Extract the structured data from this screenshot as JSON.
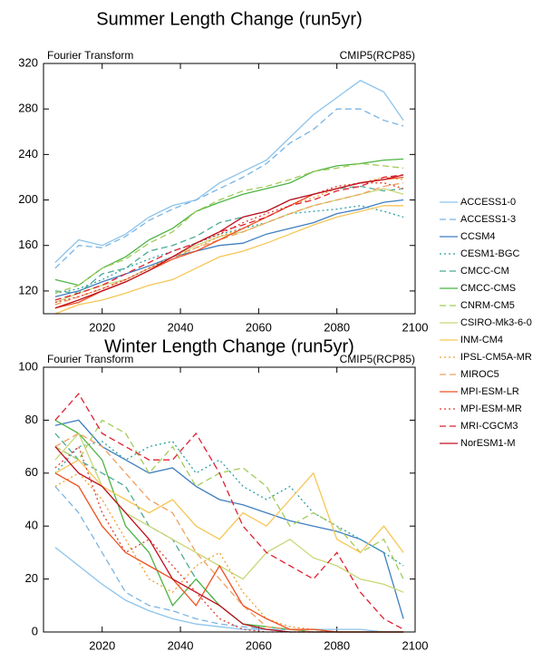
{
  "chart_data": [
    {
      "type": "line",
      "title": "Summer Length Change (run5yr)",
      "left_label": "Fourier Transform",
      "right_label": "CMIP5(RCP85)",
      "x": [
        2008,
        2014,
        2020,
        2026,
        2032,
        2038,
        2044,
        2050,
        2056,
        2062,
        2068,
        2074,
        2080,
        2086,
        2092,
        2097
      ],
      "xlim": [
        2005,
        2100
      ],
      "xticks": [
        2020,
        2040,
        2060,
        2080,
        2100
      ],
      "ylim": [
        100,
        320
      ],
      "yticks": [
        120,
        160,
        200,
        240,
        280,
        320
      ],
      "series": [
        {
          "name": "ACCESS1-0",
          "color": "#8cc4ec",
          "dash": "solid",
          "values": [
            145,
            165,
            160,
            170,
            185,
            195,
            200,
            215,
            225,
            235,
            255,
            275,
            290,
            305,
            295,
            270
          ]
        },
        {
          "name": "ACCESS1-3",
          "color": "#7ab4e4",
          "dash": "dashed",
          "values": [
            140,
            160,
            158,
            168,
            182,
            192,
            200,
            210,
            220,
            232,
            250,
            262,
            280,
            280,
            270,
            265
          ]
        },
        {
          "name": "CCSM4",
          "color": "#3f7fc0",
          "dash": "solid",
          "values": [
            115,
            120,
            128,
            135,
            142,
            150,
            155,
            160,
            162,
            170,
            175,
            180,
            188,
            192,
            198,
            200
          ]
        },
        {
          "name": "CESM1-BGC",
          "color": "#2fa0a0",
          "dash": "dotted",
          "values": [
            118,
            122,
            130,
            140,
            148,
            155,
            162,
            170,
            175,
            180,
            188,
            190,
            192,
            195,
            190,
            185
          ]
        },
        {
          "name": "CMCC-CM",
          "color": "#4aaa96",
          "dash": "dashed",
          "values": [
            120,
            118,
            135,
            140,
            155,
            160,
            168,
            180,
            185,
            190,
            200,
            205,
            210,
            212,
            208,
            210
          ]
        },
        {
          "name": "CMCC-CMS",
          "color": "#4cb444",
          "dash": "solid",
          "values": [
            130,
            125,
            140,
            150,
            165,
            175,
            190,
            198,
            205,
            210,
            215,
            225,
            230,
            232,
            235,
            236
          ]
        },
        {
          "name": "CNRM-CM5",
          "color": "#a2cc58",
          "dash": "dashed",
          "values": [
            118,
            125,
            140,
            148,
            162,
            172,
            190,
            200,
            208,
            212,
            218,
            225,
            228,
            232,
            230,
            228
          ]
        },
        {
          "name": "CSIRO-Mk3-6-0",
          "color": "#cad676",
          "dash": "solid",
          "values": [
            110,
            118,
            125,
            130,
            140,
            150,
            160,
            168,
            172,
            180,
            188,
            195,
            200,
            205,
            210,
            205
          ]
        },
        {
          "name": "INM-CM4",
          "color": "#f6c656",
          "dash": "solid",
          "values": [
            100,
            108,
            112,
            118,
            125,
            130,
            140,
            150,
            155,
            162,
            170,
            178,
            185,
            190,
            195,
            195
          ]
        },
        {
          "name": "IPSL-CM5A-MR",
          "color": "#f0a030",
          "dash": "dotted",
          "values": [
            105,
            112,
            120,
            128,
            138,
            148,
            158,
            168,
            175,
            185,
            195,
            202,
            210,
            215,
            220,
            218
          ]
        },
        {
          "name": "MIROC5",
          "color": "#f0a060",
          "dash": "dashed",
          "values": [
            108,
            115,
            122,
            130,
            140,
            150,
            158,
            165,
            172,
            180,
            188,
            195,
            200,
            205,
            212,
            215
          ]
        },
        {
          "name": "MPI-ESM-LR",
          "color": "#ee5020",
          "dash": "solid",
          "values": [
            105,
            110,
            120,
            128,
            138,
            148,
            155,
            165,
            175,
            185,
            195,
            205,
            210,
            215,
            218,
            220
          ]
        },
        {
          "name": "MPI-ESM-MR",
          "color": "#e04030",
          "dash": "dotted",
          "values": [
            110,
            115,
            122,
            130,
            140,
            150,
            162,
            170,
            180,
            188,
            195,
            205,
            212,
            215,
            215,
            210
          ]
        },
        {
          "name": "MRI-CGCM3",
          "color": "#e02030",
          "dash": "dashed",
          "values": [
            112,
            118,
            125,
            135,
            145,
            155,
            162,
            172,
            178,
            185,
            195,
            200,
            208,
            212,
            220,
            222
          ]
        },
        {
          "name": "NorESM1-M",
          "color": "#c01020",
          "dash": "solid",
          "values": [
            105,
            112,
            120,
            128,
            138,
            150,
            162,
            172,
            185,
            190,
            200,
            205,
            210,
            215,
            218,
            222
          ]
        }
      ]
    },
    {
      "type": "line",
      "title": "Winter Length Change (run5yr)",
      "left_label": "Fourier Transform",
      "right_label": "CMIP5(RCP85)",
      "x": [
        2008,
        2014,
        2020,
        2026,
        2032,
        2038,
        2044,
        2050,
        2056,
        2062,
        2068,
        2074,
        2080,
        2086,
        2092,
        2097
      ],
      "xlim": [
        2005,
        2100
      ],
      "xticks": [
        2020,
        2040,
        2060,
        2080,
        2100
      ],
      "ylim": [
        0,
        100
      ],
      "yticks": [
        0,
        20,
        40,
        60,
        80,
        100
      ],
      "series": [
        {
          "values": [
            32,
            25,
            18,
            12,
            8,
            5,
            3,
            2,
            1,
            1,
            1,
            1,
            1,
            1,
            0,
            0
          ]
        },
        {
          "values": [
            55,
            45,
            30,
            15,
            10,
            8,
            5,
            3,
            2,
            1,
            1,
            1,
            0,
            0,
            0,
            0
          ]
        },
        {
          "values": [
            78,
            80,
            70,
            65,
            60,
            62,
            55,
            50,
            48,
            45,
            42,
            40,
            38,
            35,
            30,
            5
          ]
        },
        {
          "values": [
            60,
            70,
            72,
            65,
            70,
            72,
            60,
            65,
            55,
            50,
            55,
            45,
            40,
            35,
            30,
            25
          ]
        },
        {
          "values": [
            75,
            65,
            60,
            55,
            40,
            35,
            20,
            10,
            3,
            1,
            0,
            0,
            0,
            0,
            0,
            0
          ]
        },
        {
          "values": [
            80,
            75,
            65,
            40,
            30,
            10,
            20,
            10,
            3,
            2,
            1,
            0,
            0,
            0,
            0,
            0
          ]
        },
        {
          "values": [
            70,
            65,
            80,
            75,
            60,
            70,
            55,
            60,
            62,
            55,
            40,
            45,
            40,
            30,
            35,
            20
          ]
        },
        {
          "values": [
            65,
            75,
            55,
            45,
            40,
            35,
            30,
            25,
            20,
            30,
            35,
            28,
            25,
            20,
            18,
            15
          ]
        },
        {
          "values": [
            60,
            65,
            55,
            50,
            45,
            50,
            40,
            35,
            45,
            40,
            50,
            60,
            35,
            30,
            40,
            30
          ]
        },
        {
          "values": [
            55,
            60,
            50,
            35,
            20,
            15,
            25,
            30,
            15,
            5,
            2,
            1,
            0,
            0,
            0,
            0
          ]
        },
        {
          "values": [
            70,
            75,
            70,
            60,
            50,
            45,
            30,
            20,
            10,
            2,
            1,
            0,
            0,
            0,
            0,
            0
          ]
        },
        {
          "values": [
            60,
            55,
            40,
            30,
            25,
            20,
            10,
            25,
            10,
            5,
            1,
            1,
            0,
            0,
            0,
            0
          ]
        },
        {
          "values": [
            62,
            70,
            45,
            30,
            35,
            25,
            15,
            5,
            1,
            0,
            0,
            0,
            0,
            0,
            0,
            0
          ]
        },
        {
          "values": [
            80,
            90,
            75,
            70,
            65,
            65,
            75,
            60,
            40,
            30,
            25,
            20,
            30,
            15,
            5,
            1
          ]
        },
        {
          "values": [
            70,
            60,
            55,
            45,
            35,
            20,
            15,
            10,
            3,
            1,
            0,
            0,
            0,
            0,
            0,
            0
          ]
        }
      ]
    }
  ]
}
